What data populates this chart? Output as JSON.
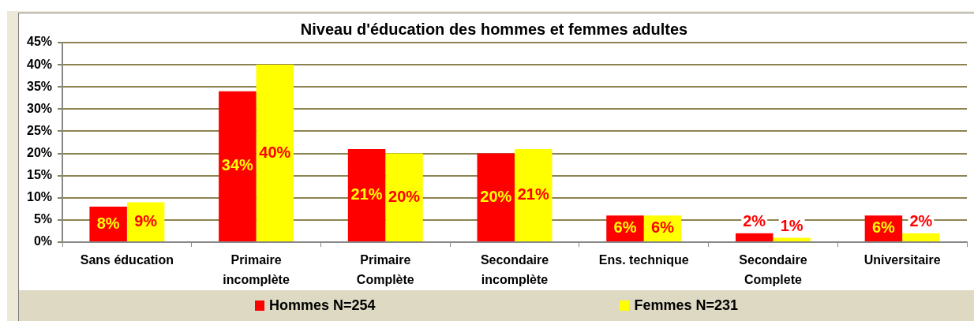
{
  "chart_data": {
    "type": "bar",
    "title": "Niveau d'éducation des hommes et femmes adultes",
    "categories": [
      "Sans éducation",
      "Primaire incomplète",
      "Primaire Complète",
      "Secondaire incomplète",
      "Ens. technique",
      "Secondaire Complete",
      "Universitaire"
    ],
    "series": [
      {
        "name": "Hommes N=254",
        "color": "#ff0000",
        "values": [
          8,
          34,
          21,
          20,
          6,
          2,
          6
        ],
        "value_labels": [
          "8%",
          "34%",
          "21%",
          "20%",
          "6%",
          "2%",
          "6%"
        ]
      },
      {
        "name": "Femmes N=231",
        "color": "#ffff00",
        "values": [
          9,
          40,
          20,
          21,
          6,
          1,
          2
        ],
        "value_labels": [
          "9%",
          "40%",
          "20%",
          "21%",
          "6%",
          "1%",
          "2%"
        ]
      }
    ],
    "ylim": [
      0,
      45
    ],
    "yticks": [
      {
        "value": 0,
        "label": "0%"
      },
      {
        "value": 5,
        "label": "5%"
      },
      {
        "value": 10,
        "label": "10%"
      },
      {
        "value": 15,
        "label": "15%"
      },
      {
        "value": 20,
        "label": "20%"
      },
      {
        "value": 25,
        "label": "25%"
      },
      {
        "value": 30,
        "label": "30%"
      },
      {
        "value": 35,
        "label": "35%"
      },
      {
        "value": 40,
        "label": "40%"
      },
      {
        "value": 45,
        "label": "45%"
      }
    ],
    "grid": "y",
    "legend": "bottom"
  }
}
